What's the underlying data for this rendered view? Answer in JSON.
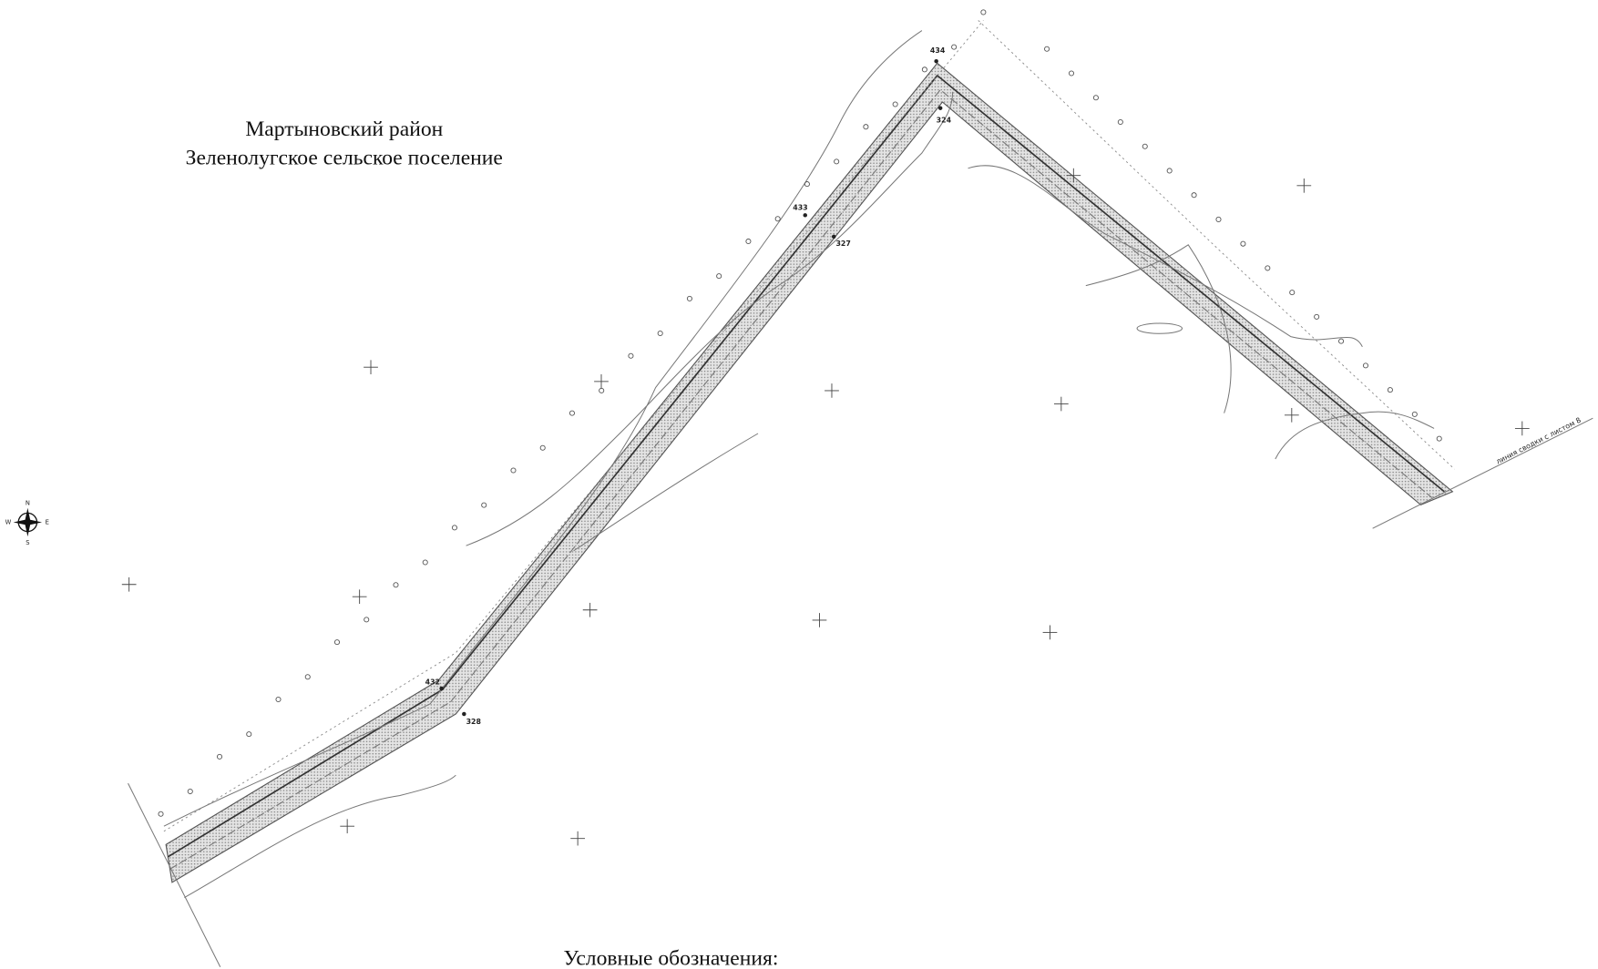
{
  "header": {
    "district": "Мартыновский район",
    "settlement": "Зеленолугское сельское поселение"
  },
  "legend_title": "Условные обозначения:",
  "points": [
    {
      "label": "434"
    },
    {
      "label": "324"
    },
    {
      "label": "433"
    },
    {
      "label": "327"
    },
    {
      "label": "432"
    },
    {
      "label": "328"
    }
  ],
  "compass": {
    "n": "N",
    "s": "S",
    "w": "W",
    "e": "E"
  },
  "sheet_note": "линия сводки с листом 8"
}
